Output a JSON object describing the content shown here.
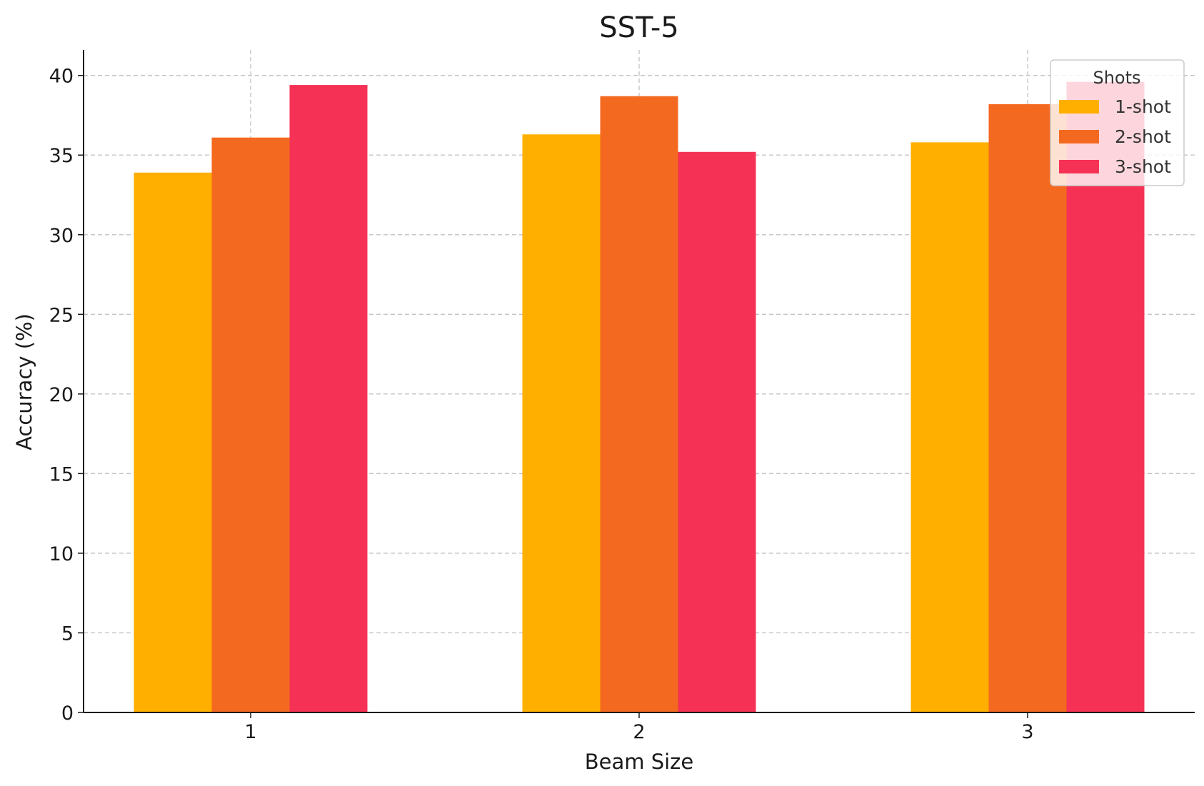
{
  "chart_data": {
    "type": "bar",
    "title": "SST-5",
    "xlabel": "Beam Size",
    "ylabel": "Accuracy (%)",
    "categories": [
      "1",
      "2",
      "3"
    ],
    "series": [
      {
        "name": "1-shot",
        "color": "#FFAF00",
        "values": [
          33.9,
          36.3,
          35.8
        ]
      },
      {
        "name": "2-shot",
        "color": "#F46920",
        "values": [
          36.1,
          38.7,
          38.2
        ]
      },
      {
        "name": "3-shot",
        "color": "#F53255",
        "values": [
          39.4,
          35.2,
          39.6
        ]
      }
    ],
    "ylim": [
      0,
      41.6
    ],
    "yticks": [
      0,
      5,
      10,
      15,
      20,
      25,
      30,
      35,
      40
    ],
    "grid": true,
    "legend": {
      "title": "Shots",
      "placement": "top-right"
    }
  }
}
